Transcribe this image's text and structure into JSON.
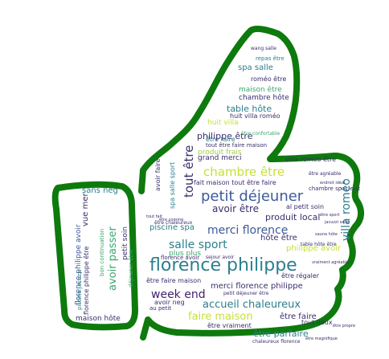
{
  "colors": {
    "outline": "#0e7a0d",
    "navy": "#3b2e6e",
    "teal": "#2b7f8e",
    "green": "#3aa76d",
    "lime": "#c7e03a",
    "yellowgreen": "#9fd13f",
    "blue": "#3c5a9a",
    "purple": "#45206b"
  },
  "words": [
    {
      "text": "florence philippe",
      "c": "teal"
    },
    {
      "text": "petit déjeuner",
      "c": "blue"
    },
    {
      "text": "chambre être",
      "c": "lime"
    },
    {
      "text": "tout être",
      "c": "navy"
    },
    {
      "text": "villa roméo",
      "c": "teal"
    },
    {
      "text": "salle sport",
      "c": "teal"
    },
    {
      "text": "merci florence",
      "c": "blue"
    },
    {
      "text": "week end",
      "c": "purple"
    },
    {
      "text": "accueil chaleureux",
      "c": "teal"
    },
    {
      "text": "faire maison",
      "c": "lime"
    },
    {
      "text": "avoir être",
      "c": "navy"
    },
    {
      "text": "produit local",
      "c": "navy"
    },
    {
      "text": "villa romeo être",
      "c": "navy"
    },
    {
      "text": "hôte être",
      "c": "navy"
    },
    {
      "text": "philippe être",
      "c": "navy"
    },
    {
      "text": "grand merci",
      "c": "navy"
    },
    {
      "text": "philippe avoir",
      "c": "lime"
    },
    {
      "text": "merci florence philippe",
      "c": "navy"
    },
    {
      "text": "être faire",
      "c": "navy"
    },
    {
      "text": "être parfaire",
      "c": "teal"
    },
    {
      "text": "tout deux",
      "c": "navy"
    },
    {
      "text": "être vraiment",
      "c": "navy"
    },
    {
      "text": "piscine spa",
      "c": "teal"
    },
    {
      "text": "plus plus",
      "c": "green"
    },
    {
      "text": "spa salle",
      "c": "teal"
    },
    {
      "text": "roméo être",
      "c": "navy"
    },
    {
      "text": "table hôte",
      "c": "teal"
    },
    {
      "text": "chambre hôte",
      "c": "navy"
    },
    {
      "text": "maison être",
      "c": "green"
    },
    {
      "text": "huit villa",
      "c": "lime"
    },
    {
      "text": "huit villa roméo",
      "c": "navy"
    },
    {
      "text": "tout être faire maison",
      "c": "navy"
    },
    {
      "text": "produit frais",
      "c": "yellowgreen"
    },
    {
      "text": "sans neg",
      "c": "teal"
    },
    {
      "text": "avoir passer",
      "c": "green"
    },
    {
      "text": "vue mer",
      "c": "navy"
    },
    {
      "text": "florence philippe avoir",
      "c": "blue"
    },
    {
      "text": "petit soin",
      "c": "navy"
    },
    {
      "text": "florence philippe être",
      "c": "navy"
    },
    {
      "text": "piscine jacuzzi",
      "c": "teal"
    },
    {
      "text": "avoir neg",
      "c": "navy"
    },
    {
      "text": "maison hôte",
      "c": "navy"
    },
    {
      "text": "avoir faire",
      "c": "navy"
    },
    {
      "text": "spa salle sport",
      "c": "teal"
    },
    {
      "text": "al petit soin",
      "c": "navy"
    },
    {
      "text": "fait maison tout être faire",
      "c": "navy"
    },
    {
      "text": "être régaler",
      "c": "navy"
    },
    {
      "text": "être faire maison",
      "c": "navy"
    },
    {
      "text": "florence avoir",
      "c": "navy"
    },
    {
      "text": "au petit",
      "c": "navy"
    },
    {
      "text": "sejour avoir",
      "c": "navy"
    },
    {
      "text": "bon continuation",
      "c": "green"
    },
    {
      "text": "déjeuner être",
      "c": "green"
    },
    {
      "text": "être agréable",
      "c": "navy"
    },
    {
      "text": "chambre spacieux",
      "c": "navy"
    },
    {
      "text": "être chaleureux",
      "c": "navy"
    },
    {
      "text": "chaleureux florence",
      "c": "navy"
    },
    {
      "text": "être magnifique",
      "c": "navy"
    },
    {
      "text": "repas être",
      "c": "teal"
    },
    {
      "text": "wang salle",
      "c": "navy"
    },
    {
      "text": "être faire",
      "c": "teal"
    },
    {
      "text": "table hôte être",
      "c": "navy"
    },
    {
      "text": "petit déjeuner être",
      "c": "navy"
    },
    {
      "text": "être comme",
      "c": "navy"
    },
    {
      "text": "être sport",
      "c": "navy"
    },
    {
      "text": "endroit idéal",
      "c": "navy"
    },
    {
      "text": "sauna hôte",
      "c": "navy"
    },
    {
      "text": "tout fait",
      "c": "navy"
    },
    {
      "text": "jacuzzi salle",
      "c": "navy"
    },
    {
      "text": "vraiment agréable",
      "c": "navy"
    },
    {
      "text": "être confortable",
      "c": "green"
    },
    {
      "text": "être propre",
      "c": "navy"
    }
  ]
}
